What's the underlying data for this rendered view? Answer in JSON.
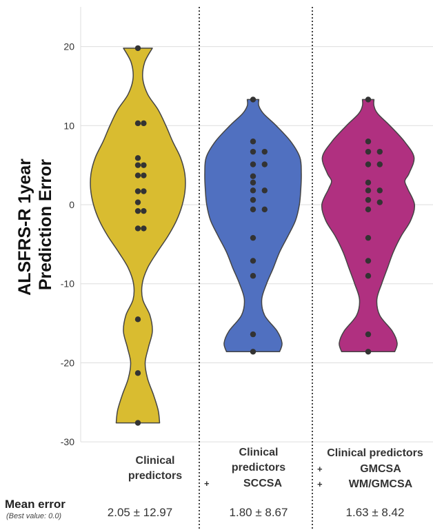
{
  "chart_data": {
    "type": "violin",
    "ylabel_lines": [
      "ALSFRS-R 1year",
      "Prediction Error"
    ],
    "ylim": [
      -30,
      25
    ],
    "yticks": [
      20,
      10,
      0,
      -10,
      -20,
      -30
    ],
    "grid": true,
    "series": [
      {
        "label_lines": [
          "Clinical",
          "predictors"
        ],
        "plus_lines": [],
        "color": "#D9BC30",
        "mean_error": "2.05 ± 12.97",
        "points": [
          19.8,
          10.3,
          10.3,
          5.9,
          5.0,
          5.0,
          3.7,
          3.7,
          1.7,
          1.7,
          0.3,
          -0.8,
          -0.8,
          -3.0,
          -3.0,
          -14.5,
          -21.3,
          -27.6
        ],
        "profile": [
          [
            -27.6,
            0.45
          ],
          [
            -26,
            0.42
          ],
          [
            -24,
            0.32
          ],
          [
            -22,
            0.2
          ],
          [
            -20,
            0.15
          ],
          [
            -18,
            0.22
          ],
          [
            -16,
            0.3
          ],
          [
            -14,
            0.25
          ],
          [
            -12,
            0.1
          ],
          [
            -10,
            0.09
          ],
          [
            -8,
            0.2
          ],
          [
            -6,
            0.4
          ],
          [
            -4,
            0.62
          ],
          [
            -2,
            0.8
          ],
          [
            0,
            0.92
          ],
          [
            2,
            0.98
          ],
          [
            4,
            0.97
          ],
          [
            6,
            0.88
          ],
          [
            8,
            0.72
          ],
          [
            10,
            0.58
          ],
          [
            12,
            0.42
          ],
          [
            14,
            0.2
          ],
          [
            16,
            0.1
          ],
          [
            18,
            0.14
          ],
          [
            19.8,
            0.3
          ]
        ]
      },
      {
        "label_lines": [
          "Clinical",
          "predictors"
        ],
        "plus_lines": [
          "SCCSA"
        ],
        "color": "#5070C0",
        "mean_error": "1.80 ± 8.67",
        "points": [
          13.3,
          8.0,
          6.7,
          6.7,
          5.1,
          5.1,
          3.6,
          2.8,
          1.8,
          1.8,
          0.6,
          -0.6,
          -0.6,
          -4.2,
          -7.1,
          -9.0,
          -16.4,
          -18.6
        ],
        "profile": [
          [
            -18.6,
            0.55
          ],
          [
            -17.5,
            0.6
          ],
          [
            -16,
            0.5
          ],
          [
            -14,
            0.24
          ],
          [
            -12,
            0.18
          ],
          [
            -10,
            0.28
          ],
          [
            -8,
            0.42
          ],
          [
            -6,
            0.55
          ],
          [
            -4,
            0.72
          ],
          [
            -2,
            0.88
          ],
          [
            0,
            0.96
          ],
          [
            2,
            0.99
          ],
          [
            4,
            1.0
          ],
          [
            6,
            0.97
          ],
          [
            8,
            0.78
          ],
          [
            10,
            0.48
          ],
          [
            11.5,
            0.22
          ],
          [
            12.5,
            0.12
          ],
          [
            13.3,
            0.12
          ]
        ]
      },
      {
        "label_lines": [
          "Clinical predictors"
        ],
        "plus_lines": [
          "GMCSA",
          "WM/GMCSA"
        ],
        "color": "#B03080",
        "mean_error": "1.63 ± 8.42",
        "points": [
          13.3,
          8.0,
          6.7,
          6.7,
          5.1,
          5.1,
          2.8,
          1.8,
          1.8,
          0.6,
          0.3,
          -0.6,
          -4.2,
          -7.1,
          -9.0,
          -16.4,
          -18.6
        ],
        "profile": [
          [
            -18.6,
            0.55
          ],
          [
            -17.5,
            0.6
          ],
          [
            -16,
            0.5
          ],
          [
            -14,
            0.24
          ],
          [
            -12,
            0.18
          ],
          [
            -10,
            0.28
          ],
          [
            -8,
            0.4
          ],
          [
            -6,
            0.52
          ],
          [
            -4,
            0.68
          ],
          [
            -2,
            0.88
          ],
          [
            0,
            0.96
          ],
          [
            2,
            0.82
          ],
          [
            3,
            0.76
          ],
          [
            4,
            0.85
          ],
          [
            6,
            0.95
          ],
          [
            8,
            0.75
          ],
          [
            10,
            0.45
          ],
          [
            11.5,
            0.2
          ],
          [
            12.5,
            0.12
          ],
          [
            13.3,
            0.12
          ]
        ]
      }
    ]
  },
  "mean_row": {
    "title": "Mean error",
    "subtitle": "(Best value: 0.0)"
  },
  "colors": {
    "grid": "#DDDDDD",
    "outline": "#444444",
    "point": "#333333",
    "divider": "#111111"
  }
}
